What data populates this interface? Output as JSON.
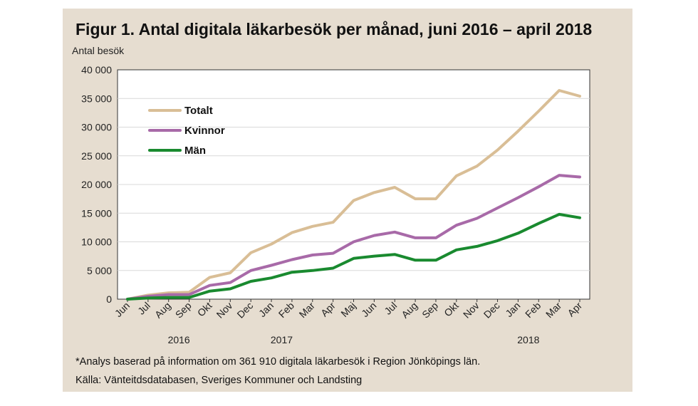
{
  "figure": {
    "title": "Figur 1. Antal digitala läkarbesök per månad, juni 2016 – april 2018",
    "footnote": "*Analys baserad på information om 361 910 digitala läkarbesök i Region Jönköpings län.",
    "source": "Källa: Vänteitdsdatabasen, Sveriges Kommuner och Landsting"
  },
  "chart_data": {
    "type": "line",
    "title": "Figur 1. Antal digitala läkarbesök per månad, juni 2016 – april 2018",
    "ylabel": "Antal besök",
    "xlabel": "",
    "ylim": [
      0,
      40000
    ],
    "yticks": [
      "0",
      "5 000",
      "10 000",
      "15 000",
      "20 000",
      "25 000",
      "30 000",
      "35 000",
      "40 000"
    ],
    "categories": [
      "Jun",
      "Jul",
      "Aug",
      "Sep",
      "Okt",
      "Nov",
      "Dec",
      "Jan",
      "Feb",
      "Mar",
      "Apr",
      "Maj",
      "Jun",
      "Jul",
      "Aug",
      "Sep",
      "Okt",
      "Nov",
      "Dec",
      "Jan",
      "Feb",
      "Mar",
      "Apr"
    ],
    "year_labels": [
      {
        "label": "2016",
        "category_index": 2.5
      },
      {
        "label": "2017",
        "category_index": 7.5
      },
      {
        "label": "2018",
        "category_index": 19.5
      }
    ],
    "legend_position": "top-left",
    "grid": true,
    "series": [
      {
        "name": "Totalt",
        "color": "#d9be96",
        "values": [
          0,
          700,
          1100,
          1200,
          3800,
          4600,
          8100,
          9600,
          11600,
          12700,
          13400,
          17200,
          18600,
          19500,
          17500,
          17500,
          21500,
          23200,
          26000,
          29300,
          32800,
          36400,
          35400
        ]
      },
      {
        "name": "Kvinnor",
        "color": "#a86aa8",
        "values": [
          0,
          500,
          800,
          800,
          2400,
          2900,
          5000,
          5900,
          6900,
          7700,
          8000,
          10000,
          11100,
          11700,
          10700,
          10700,
          12900,
          14100,
          15900,
          17700,
          19600,
          21600,
          21300
        ]
      },
      {
        "name": "Män",
        "color": "#198a2f",
        "values": [
          0,
          200,
          300,
          300,
          1400,
          1800,
          3100,
          3700,
          4700,
          5000,
          5400,
          7100,
          7500,
          7800,
          6800,
          6800,
          8600,
          9200,
          10200,
          11500,
          13200,
          14800,
          14200
        ]
      }
    ]
  }
}
